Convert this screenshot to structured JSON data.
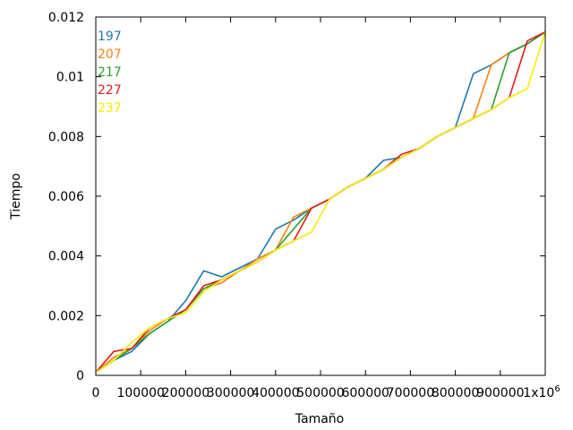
{
  "chart_data": {
    "type": "line",
    "xlabel": "Tamaño",
    "ylabel": "Tiempo",
    "xlim": [
      0,
      1000000
    ],
    "ylim": [
      0,
      0.012
    ],
    "x_ticks": [
      0,
      100000,
      200000,
      300000,
      400000,
      500000,
      600000,
      700000,
      800000,
      900000,
      1000000
    ],
    "x_tick_labels": [
      "0",
      "100000",
      "200000",
      "300000",
      "400000",
      "500000",
      "600000",
      "700000",
      "800000",
      "900000",
      "1x10"
    ],
    "x_tick_exponent": "6",
    "y_ticks": [
      0,
      0.002,
      0.004,
      0.006,
      0.008,
      0.01,
      0.012
    ],
    "y_tick_labels": [
      "0",
      "0.002",
      "0.004",
      "0.006",
      "0.008",
      "0.01",
      "0.012"
    ],
    "grid": false,
    "legend_position": "top-left",
    "series": [
      {
        "name": "197",
        "color": "#1f77b4",
        "x": [
          0,
          40000,
          80000,
          120000,
          160000,
          200000,
          240000,
          280000,
          320000,
          360000,
          400000,
          440000,
          480000,
          520000,
          560000,
          600000,
          640000,
          680000,
          720000,
          760000,
          800000,
          840000,
          880000,
          920000,
          960000,
          1000000
        ],
        "y": [
          0.0001,
          0.0005,
          0.0008,
          0.0014,
          0.0018,
          0.0025,
          0.0035,
          0.0033,
          0.0036,
          0.0039,
          0.0049,
          0.0052,
          0.0056,
          0.0059,
          0.0063,
          0.0066,
          0.0072,
          0.0073,
          0.0076,
          0.008,
          0.0083,
          0.0101,
          0.0104,
          0.0108,
          0.0111,
          0.0115
        ]
      },
      {
        "name": "207",
        "color": "#ff7f0e",
        "x": [
          0,
          40000,
          80000,
          120000,
          160000,
          200000,
          240000,
          280000,
          320000,
          360000,
          400000,
          440000,
          480000,
          520000,
          560000,
          600000,
          640000,
          680000,
          720000,
          760000,
          800000,
          840000,
          880000,
          920000,
          960000,
          1000000
        ],
        "y": [
          0.0001,
          0.0006,
          0.0009,
          0.0015,
          0.0019,
          0.0022,
          0.0029,
          0.0031,
          0.0035,
          0.0039,
          0.0042,
          0.0053,
          0.0056,
          0.0059,
          0.0063,
          0.0066,
          0.0069,
          0.0073,
          0.0076,
          0.008,
          0.0083,
          0.0086,
          0.0104,
          0.0108,
          0.0111,
          0.0115
        ]
      },
      {
        "name": "217",
        "color": "#2ca02c",
        "x": [
          0,
          40000,
          80000,
          120000,
          160000,
          200000,
          240000,
          280000,
          320000,
          360000,
          400000,
          440000,
          480000,
          520000,
          560000,
          600000,
          640000,
          680000,
          720000,
          760000,
          800000,
          840000,
          880000,
          920000,
          960000,
          1000000
        ],
        "y": [
          0.0001,
          0.0005,
          0.0009,
          0.0014,
          0.0018,
          0.0022,
          0.0029,
          0.0032,
          0.0035,
          0.0038,
          0.0042,
          0.0049,
          0.0056,
          0.0059,
          0.0063,
          0.0066,
          0.0069,
          0.0073,
          0.0076,
          0.008,
          0.0083,
          0.0086,
          0.0089,
          0.0108,
          0.0111,
          0.0115
        ]
      },
      {
        "name": "227",
        "color": "#e31a1c",
        "x": [
          0,
          40000,
          80000,
          120000,
          160000,
          200000,
          240000,
          280000,
          320000,
          360000,
          400000,
          440000,
          480000,
          520000,
          560000,
          600000,
          640000,
          680000,
          720000,
          760000,
          800000,
          840000,
          880000,
          920000,
          960000,
          1000000
        ],
        "y": [
          0.0001,
          0.0008,
          0.0009,
          0.0016,
          0.0019,
          0.0022,
          0.003,
          0.0032,
          0.0035,
          0.0038,
          0.0042,
          0.0045,
          0.0056,
          0.0059,
          0.0063,
          0.0066,
          0.0069,
          0.0074,
          0.0076,
          0.008,
          0.0083,
          0.0086,
          0.0089,
          0.0093,
          0.0112,
          0.0115
        ]
      },
      {
        "name": "237",
        "color": "#f5ef00",
        "x": [
          0,
          40000,
          80000,
          120000,
          160000,
          200000,
          240000,
          280000,
          320000,
          360000,
          400000,
          440000,
          480000,
          520000,
          560000,
          600000,
          640000,
          680000,
          720000,
          760000,
          800000,
          840000,
          880000,
          920000,
          960000,
          1000000
        ],
        "y": [
          0.0001,
          0.0005,
          0.0011,
          0.0016,
          0.0019,
          0.0021,
          0.0028,
          0.0032,
          0.0035,
          0.0038,
          0.0042,
          0.0045,
          0.0048,
          0.0059,
          0.0063,
          0.0066,
          0.0069,
          0.0073,
          0.0076,
          0.008,
          0.0083,
          0.0086,
          0.0089,
          0.0093,
          0.0096,
          0.0115
        ]
      }
    ]
  }
}
